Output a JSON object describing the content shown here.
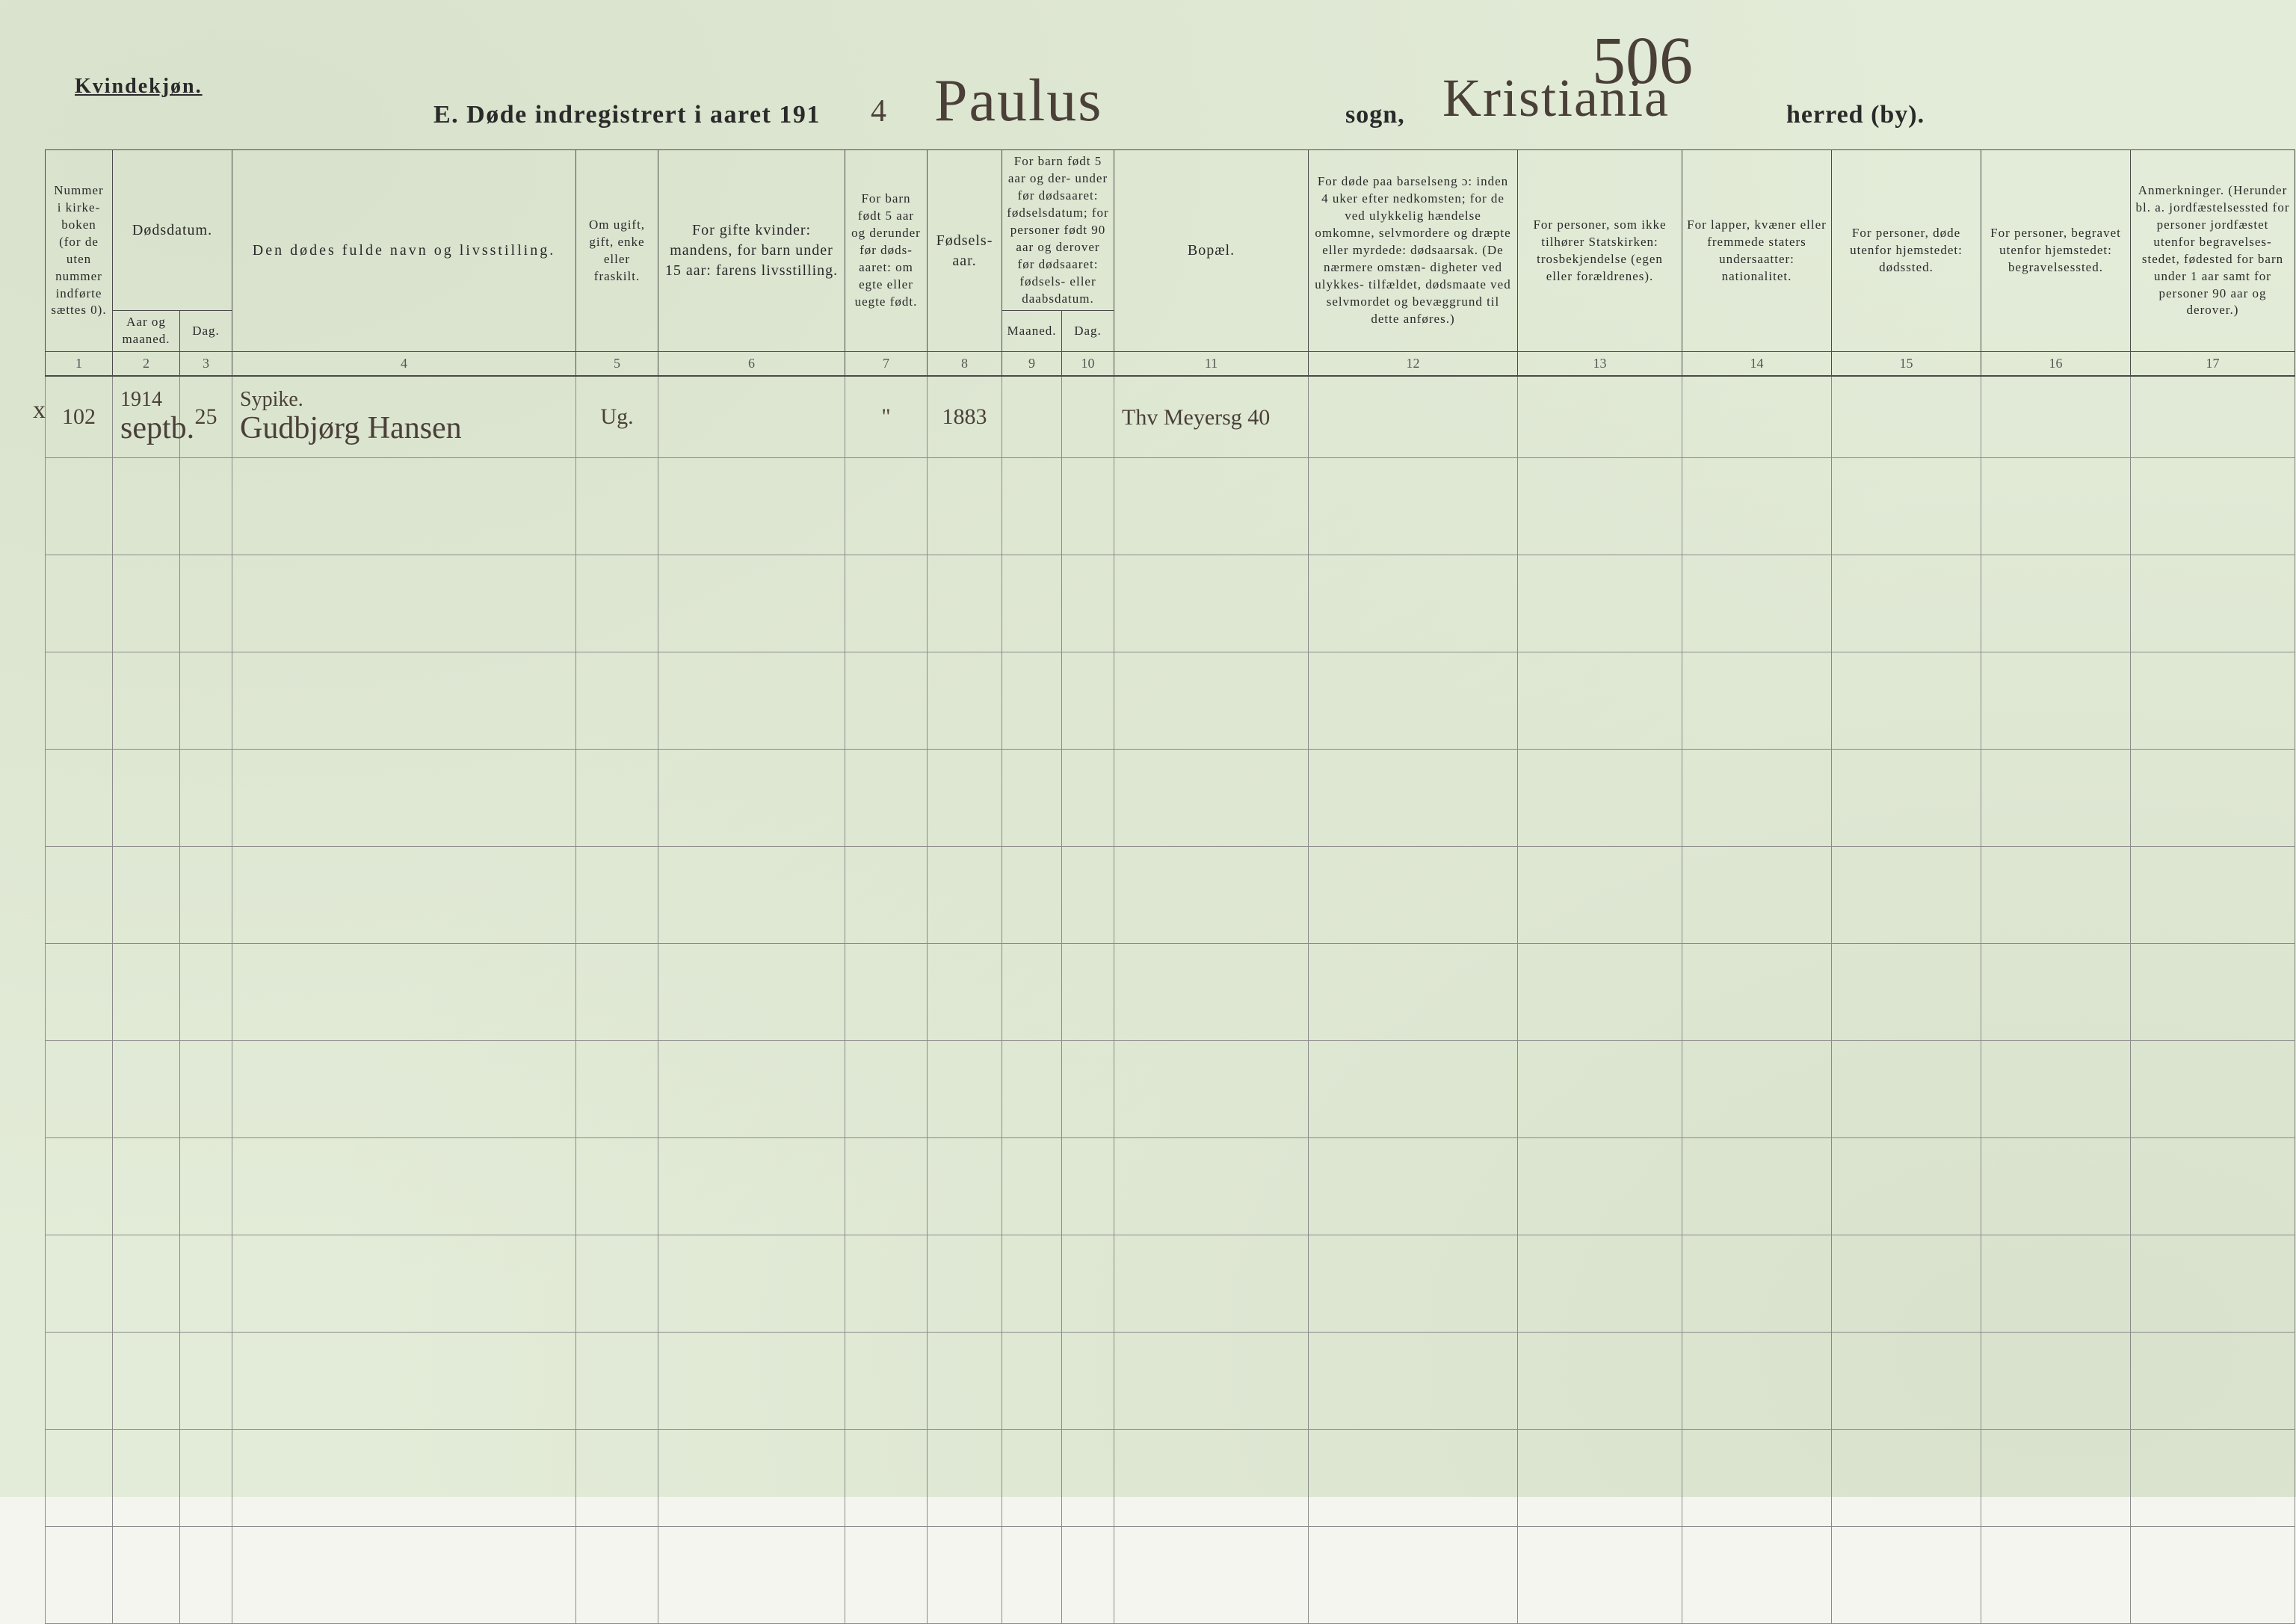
{
  "header": {
    "gender_label": "Kvindekjøn.",
    "title_prefix": "E.   Døde indregistrert i aaret 191",
    "year_digit": "4",
    "title_dot": " .",
    "parish_handwritten": "Paulus",
    "sogn_label": "sogn,",
    "district_handwritten": "Kristiania",
    "herred_label": "herred (by).",
    "page_number": "506"
  },
  "columns": {
    "c1": "Nummer i kirke-\nboken\n(for de\nuten\nnummer\nindførte\nsættes\n0).",
    "c2_group": "Dødsdatum.",
    "c2a": "Aar\nog\nmaaned.",
    "c2b": "Dag.",
    "c4": "Den dødes fulde navn og livsstilling.",
    "c5": "Om\nugift,\ngift,\nenke\neller\nfraskilt.",
    "c6": "For gifte kvinder:\nmandens,\nfor barn under 15 aar:\nfarens livsstilling.",
    "c7": "For barn\nfødt\n5 aar og\nderunder\nfør døds-\naaret:\nom egte\neller\nuegte\nfødt.",
    "c8": "Fødsels-\naar.",
    "c9_group": "For barn født\n5 aar og der-\nunder før\ndødsaaret:\nfødselsdatum;\nfor personer\nfødt 90 aar\nog derover før\ndødsaaret:\nfødsels- eller\ndaabsdatum.",
    "c9a": "Maaned.",
    "c9b": "Dag.",
    "c11": "Bopæl.",
    "c12": "For døde paa barselseng\nɔ: inden 4 uker efter\nnedkomsten;\nfor de ved ulykkelig\nhændelse omkomne,\nselvmordere og\ndræpte eller myrdede:\ndødsaarsak.\n(De nærmere omstæn-\ndigheter ved ulykkes-\ntilfældet, dødsmaate ved\nselvmordet og bevæggrund\ntil dette anføres.)",
    "c13": "For personer,\nsom ikke tilhører\nStatskirken:\ntrosbekjendelse\n(egen eller forældrenes).",
    "c14": "For lapper, kvæner\neller fremmede\nstaters undersaatter:\nnationalitet.",
    "c15": "For personer, døde\nutenfor hjemstedet:\ndødssted.",
    "c16": "For personer, begravet\nutenfor hjemstedet:\nbegravelsessted.",
    "c17": "Anmerkninger.\n(Herunder bl. a.\njordfæstelsessted for\npersoner jordfæstet\nutenfor begravelses-\nstedet, fødested for\nbarn under 1 aar\nsamt for personer\n90 aar og derover.)"
  },
  "colnums": [
    "1",
    "2",
    "3",
    "4",
    "5",
    "6",
    "7",
    "8",
    "9",
    "10",
    "11",
    "12",
    "13",
    "14",
    "15",
    "16",
    "17"
  ],
  "entry": {
    "margin_mark": "x",
    "row_number": "102",
    "year": "1914",
    "month": "septb.",
    "day": "25",
    "name_line1": "Sypike.",
    "name_line2": "Gudbjørg Hansen",
    "marital": "Ug.",
    "col6": "",
    "col7": "\"",
    "birth_year": "1883",
    "col9": "",
    "col10": "",
    "residence": "Thv Meyersg 40",
    "col12": "",
    "col13": "",
    "col14": "",
    "col15": "",
    "col16": "",
    "col17": ""
  },
  "blank_row_count": 12,
  "style": {
    "paper_color": "#e3ecd8",
    "rule_color": "#4a4a4a",
    "handwriting_color": "#4a4038",
    "header_fontsize_pt": 22,
    "body_fontsize_pt": 18
  }
}
